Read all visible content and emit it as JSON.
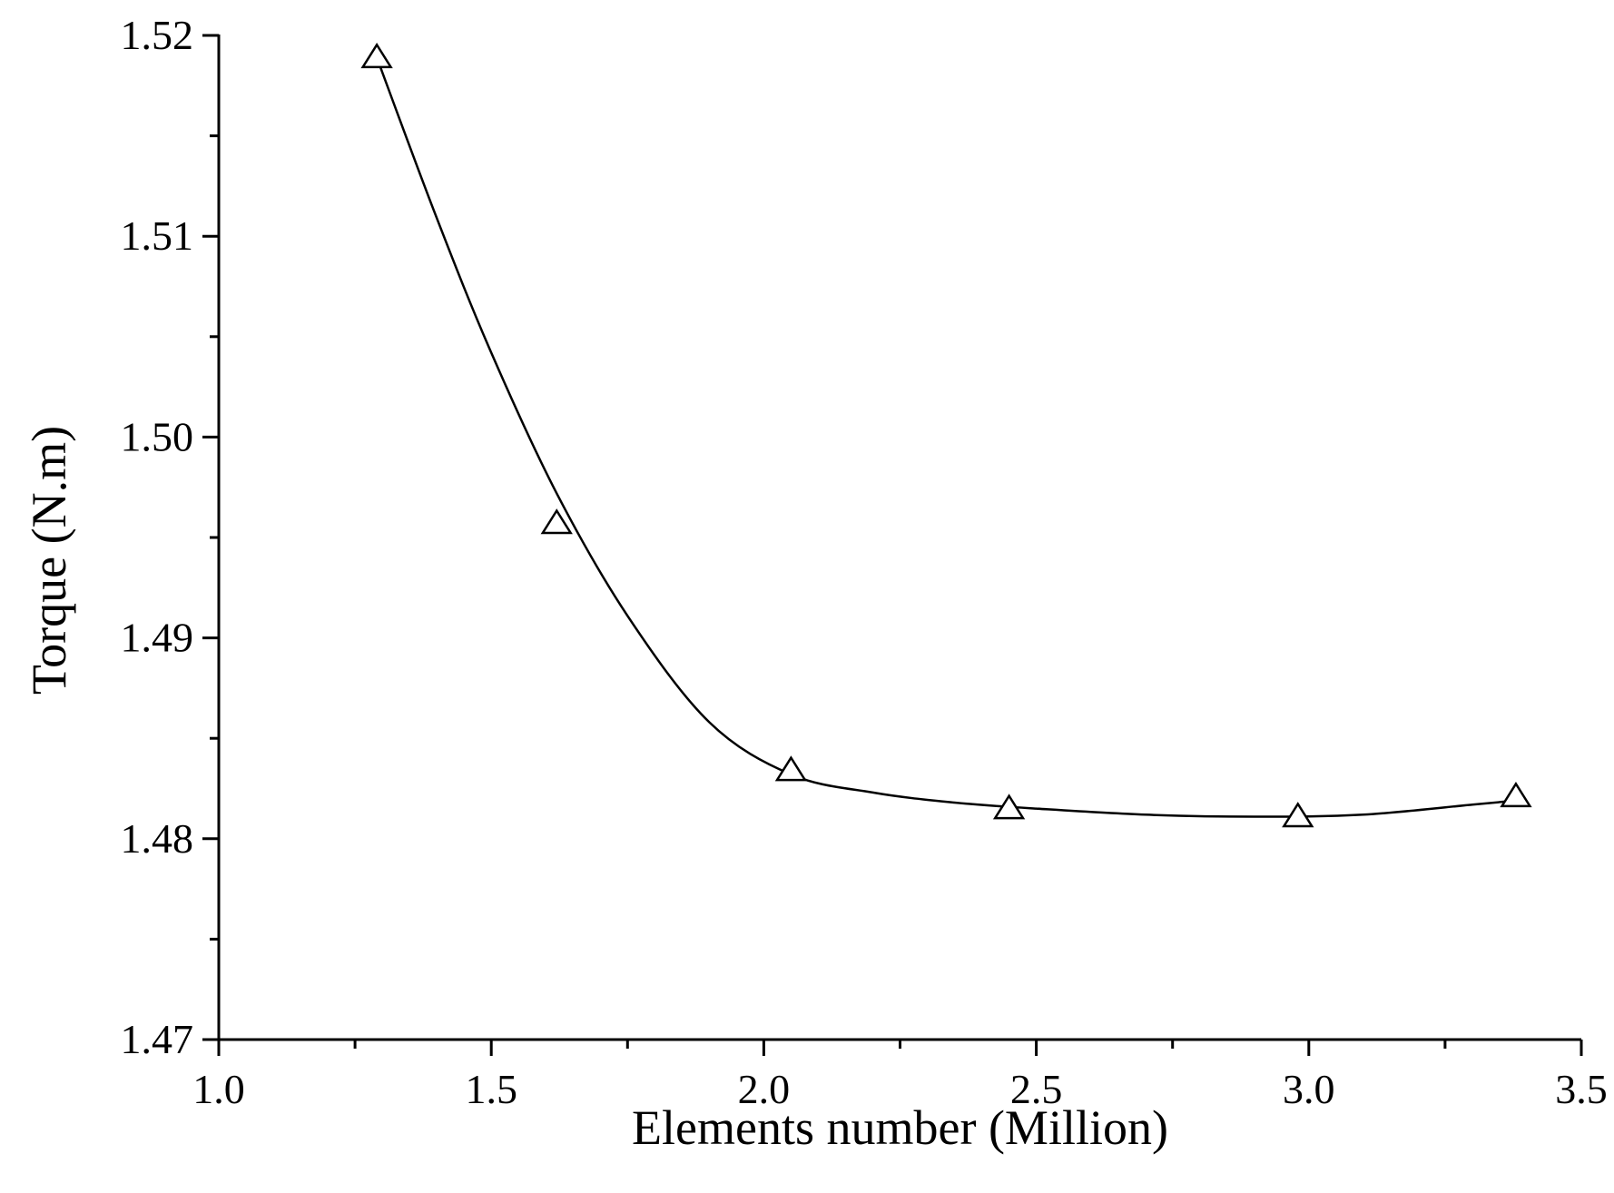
{
  "chart_data": {
    "type": "scatter",
    "xlabel": "Elements number (Million)",
    "ylabel": "Torque (N.m)",
    "xlim": [
      1.0,
      3.5
    ],
    "ylim": [
      1.47,
      1.52
    ],
    "x_major_ticks": [
      1.0,
      1.5,
      2.0,
      2.5,
      3.0,
      3.5
    ],
    "x_tick_labels": [
      "1.0",
      "1.5",
      "2.0",
      "2.5",
      "3.0",
      "3.5"
    ],
    "x_minor_step": 0.25,
    "y_major_ticks": [
      1.47,
      1.48,
      1.49,
      1.5,
      1.51,
      1.52
    ],
    "y_tick_labels": [
      "1.47",
      "1.48",
      "1.49",
      "1.50",
      "1.51",
      "1.52"
    ],
    "y_minor_step": 0.005,
    "grid": false,
    "marker": "open-triangle",
    "series": [
      {
        "x": [
          1.29,
          1.62,
          2.05,
          2.45,
          2.98,
          3.38
        ],
        "y": [
          1.5189,
          1.4957,
          1.4834,
          1.4815,
          1.4811,
          1.4821
        ]
      }
    ],
    "fit_curve": {
      "x": [
        1.29,
        1.4,
        1.5,
        1.62,
        1.75,
        1.9,
        2.05,
        2.2,
        2.35,
        2.5,
        2.7,
        2.9,
        3.1,
        3.3,
        3.38
      ],
      "y": [
        1.5189,
        1.5109,
        1.5042,
        1.4972,
        1.4911,
        1.4858,
        1.4832,
        1.4823,
        1.4818,
        1.4815,
        1.4812,
        1.4811,
        1.4812,
        1.4817,
        1.4819
      ]
    },
    "colors": {
      "line": "#000000",
      "marker_fill": "#ffffff",
      "background": "#ffffff"
    }
  }
}
